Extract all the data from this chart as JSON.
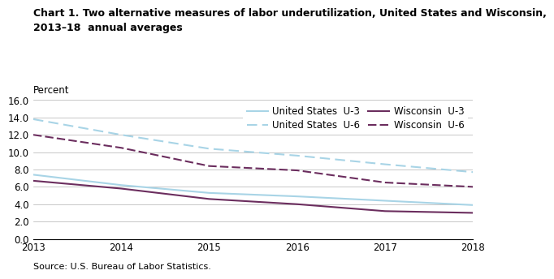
{
  "title_line1": "Chart 1. Two alternative measures of labor underutilization, United States and Wisconsin,",
  "title_line2": "2013–18  annual averages",
  "ylabel": "Percent",
  "source": "Source: U.S. Bureau of Labor Statistics.",
  "years": [
    2013,
    2014,
    2015,
    2016,
    2017,
    2018
  ],
  "us_u3": [
    7.4,
    6.2,
    5.3,
    4.9,
    4.4,
    3.9
  ],
  "us_u6": [
    13.8,
    12.0,
    10.4,
    9.6,
    8.6,
    7.7
  ],
  "wi_u3": [
    6.7,
    5.8,
    4.6,
    4.0,
    3.2,
    3.0
  ],
  "wi_u6": [
    12.0,
    10.5,
    8.4,
    7.9,
    6.5,
    6.0
  ],
  "us_color": "#a8d4e6",
  "wi_color": "#6b2d5e",
  "ylim": [
    0.0,
    16.0
  ],
  "yticks": [
    0.0,
    2.0,
    4.0,
    6.0,
    8.0,
    10.0,
    12.0,
    14.0,
    16.0
  ],
  "legend_us_u3": "United States  U-3",
  "legend_us_u6": "United States  U-6",
  "legend_wi_u3": "Wisconsin  U-3",
  "legend_wi_u6": "Wisconsin  U-6",
  "title_fontsize": 9,
  "tick_fontsize": 8.5,
  "legend_fontsize": 8.5,
  "source_fontsize": 8
}
